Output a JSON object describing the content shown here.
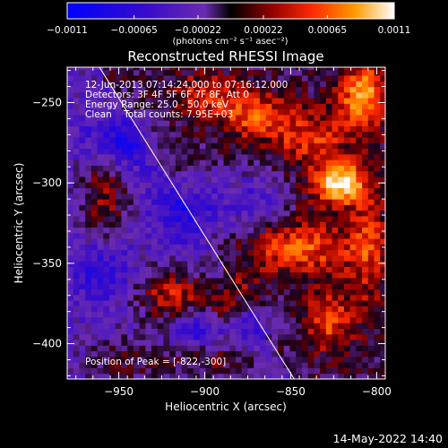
{
  "chart_data": {
    "type": "heatmap",
    "title": "Reconstructed RHESSI Image",
    "xlabel": "Heliocentric X (arcsec)",
    "ylabel": "Heliocentric Y (arcsec)",
    "xlim": [
      -980,
      -795
    ],
    "ylim": [
      -422,
      -228
    ],
    "x_ticks": [
      -950,
      -900,
      -850,
      -800
    ],
    "x_tick_labels": [
      "−950",
      "−900",
      "−850",
      "−800"
    ],
    "y_ticks": [
      -400,
      -350,
      -300,
      -250
    ],
    "y_tick_labels": [
      "−400",
      "−350",
      "−300",
      "−250"
    ],
    "colorbar": {
      "min": -0.0011,
      "max": 0.0011,
      "ticks": [
        -0.0011,
        -0.00065,
        -0.00022,
        0.00022,
        0.00065,
        0.0011
      ],
      "tick_labels": [
        "−0.0011",
        "−0.00065",
        "−0.00022",
        "0.00022",
        "0.00065",
        "0.0011"
      ],
      "units_label": "(photons cm⁻² s⁻¹ asec⁻²)"
    },
    "annotations": [
      "12-Jun-2013 07:14:24.000 to 07:16:12.000",
      "Detectors: 3F 4F 5F 6F 7F 8F, Att 0",
      "Energy Range: 25.0 - 50.0 keV",
      "Clean    Total counts: 7.95E+03"
    ],
    "peak_label": "Position of Peak = [-822,-300]",
    "peak": {
      "x": -822,
      "y": -300
    },
    "limb_line": [
      {
        "x": -963,
        "y": -225
      },
      {
        "x": -848,
        "y": -422
      }
    ],
    "bright_sources": [
      {
        "x": -822,
        "y": -300,
        "amp": 1.0,
        "sx": 10,
        "sy": 9
      },
      {
        "x": -808,
        "y": -245,
        "amp": 0.75,
        "sx": 10,
        "sy": 14
      },
      {
        "x": -870,
        "y": -258,
        "amp": 0.55,
        "sx": 14,
        "sy": 10
      },
      {
        "x": -838,
        "y": -272,
        "amp": 0.45,
        "sx": 16,
        "sy": 12
      },
      {
        "x": -958,
        "y": -305,
        "amp": 0.5,
        "sx": 10,
        "sy": 22
      },
      {
        "x": -845,
        "y": -340,
        "amp": 0.55,
        "sx": 22,
        "sy": 12
      },
      {
        "x": -920,
        "y": -370,
        "amp": 0.6,
        "sx": 14,
        "sy": 12
      },
      {
        "x": -885,
        "y": -375,
        "amp": 0.5,
        "sx": 12,
        "sy": 10
      },
      {
        "x": -828,
        "y": -385,
        "amp": 0.5,
        "sx": 10,
        "sy": 14
      },
      {
        "x": -805,
        "y": -340,
        "amp": 0.4,
        "sx": 8,
        "sy": 30
      },
      {
        "x": -900,
        "y": -245,
        "amp": 0.4,
        "sx": 14,
        "sy": 10
      },
      {
        "x": -945,
        "y": -410,
        "amp": 0.35,
        "sx": 16,
        "sy": 10
      },
      {
        "x": -895,
        "y": -410,
        "amp": 0.35,
        "sx": 20,
        "sy": 8
      }
    ],
    "dark_sources": [
      {
        "x": -950,
        "y": -275,
        "amp": 0.55,
        "sx": 14,
        "sy": 12
      },
      {
        "x": -905,
        "y": -315,
        "amp": 0.5,
        "sx": 16,
        "sy": 14
      },
      {
        "x": -960,
        "y": -355,
        "amp": 0.4,
        "sx": 12,
        "sy": 12
      },
      {
        "x": -905,
        "y": -390,
        "amp": 0.45,
        "sx": 10,
        "sy": 8
      },
      {
        "x": -870,
        "y": -385,
        "amp": 0.4,
        "sx": 10,
        "sy": 10
      },
      {
        "x": -870,
        "y": -310,
        "amp": 0.35,
        "sx": 12,
        "sy": 14
      }
    ]
  },
  "footer": {
    "timestamp": "14-May-2022 14:40"
  }
}
